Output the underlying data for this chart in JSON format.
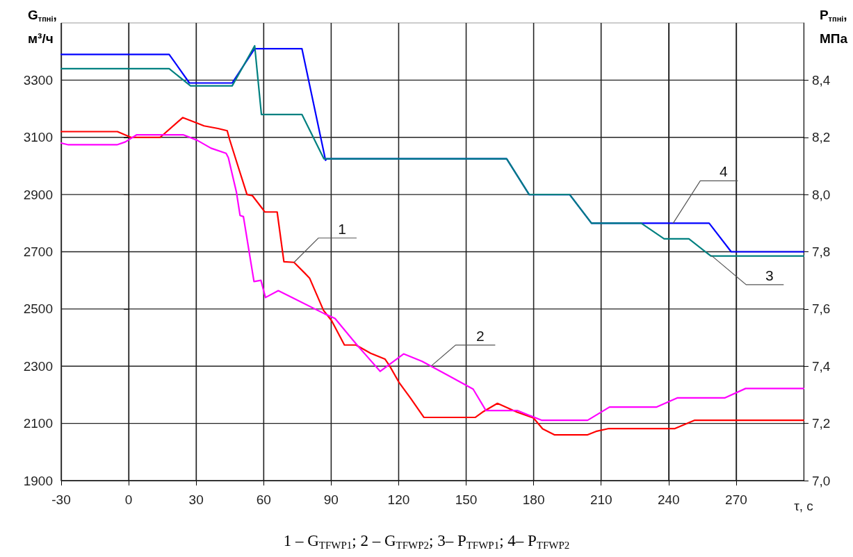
{
  "chart_data": {
    "type": "line",
    "ylabel": "G$_{тпні}$,\nм³/ч",
    "y2label": "P$_{тпні}$,\nМПа",
    "xlabel": "τ, с",
    "xlim": [
      -30,
      300
    ],
    "xticks": [
      -30,
      0,
      30,
      60,
      90,
      120,
      150,
      180,
      210,
      240,
      270
    ],
    "ylim": [
      1900,
      3500
    ],
    "yticks": [
      1900,
      2100,
      2300,
      2500,
      2700,
      2900,
      3100,
      3300
    ],
    "y2lim": [
      7.0,
      8.6
    ],
    "y2ticks": [
      {
        "value": 7.0,
        "label": "7,0"
      },
      {
        "value": 7.2,
        "label": "7,2"
      },
      {
        "value": 7.4,
        "label": "7,4"
      },
      {
        "value": 7.6,
        "label": "7,6"
      },
      {
        "value": 7.8,
        "label": "7,8"
      },
      {
        "value": 8.0,
        "label": "8,0"
      },
      {
        "value": 8.2,
        "label": "8,2"
      },
      {
        "value": 8.4,
        "label": "8,4"
      }
    ],
    "grid": true,
    "marker": "none",
    "line_style": "solid",
    "series": [
      {
        "color": "#ff0000",
        "x": [
          -30,
          -5,
          1,
          14,
          24,
          30,
          33.5,
          39.7,
          43.8,
          44.8,
          49,
          52.6,
          55,
          59.8,
          60.5,
          66,
          69,
          73.5,
          78.3,
          80.4,
          86.6,
          90.2,
          95.9,
          101,
          107.6,
          113.9,
          116,
          120.1,
          125.3,
          131.2,
          154.1,
          157.2,
          163.9,
          172.7,
          179.9,
          184,
          189.2,
          204,
          207.7,
          213.4,
          242.8,
          251.6,
          300
        ],
        "values": [
          3120,
          3120,
          3100,
          3100,
          3169,
          3151,
          3140,
          3131,
          3123,
          3094,
          2989,
          2900,
          2896,
          2847,
          2839,
          2839,
          2665,
          2663,
          2625,
          2608,
          2495,
          2459,
          2374,
          2374,
          2345,
          2325,
          2301,
          2244,
          2188,
          2121,
          2121,
          2139,
          2170,
          2139,
          2119,
          2081,
          2060,
          2060,
          2072,
          2082,
          2082,
          2111,
          2111
        ]
      },
      {
        "color": "#ff00ff",
        "x": [
          -30,
          -26.8,
          -5.2,
          -1.5,
          3.6,
          24.2,
          30.4,
          36.6,
          43.3,
          44.3,
          47.9,
          49.5,
          51,
          54.1,
          55.7,
          58.8,
          60.8,
          66.5,
          72.7,
          87.1,
          91.7,
          101.5,
          105.2,
          111.8,
          122.2,
          130.4,
          142.8,
          153.1,
          158.8,
          172.7,
          183.5,
          204,
          213.7,
          234.5,
          243.8,
          264.9,
          274.2,
          300
        ],
        "values": [
          3080,
          3074,
          3074,
          3084,
          3109,
          3109,
          3090,
          3062,
          3044,
          3029,
          2908,
          2827,
          2823,
          2673,
          2596,
          2600,
          2540,
          2564,
          2540,
          2483,
          2467,
          2374,
          2341,
          2282,
          2343,
          2317,
          2264,
          2220,
          2145,
          2145,
          2111,
          2111,
          2157,
          2157,
          2189,
          2189,
          2222,
          2222
        ]
      },
      {
        "color": "#0000ff",
        "axis": "y2",
        "x": [
          -30,
          18,
          27,
          46,
          56,
          77,
          87.5,
          88,
          168,
          178,
          196,
          205.7,
          258,
          267.8,
          300
        ],
        "values": [
          8.49,
          8.49,
          8.39,
          8.39,
          8.51,
          8.51,
          8.12,
          8.125,
          8.125,
          8.0,
          8.0,
          7.9,
          7.9,
          7.8,
          7.8
        ]
      },
      {
        "color": "#008080",
        "axis": "y2",
        "x": [
          -30,
          18,
          27.5,
          46,
          56,
          59,
          77,
          86.8,
          168,
          178,
          196,
          205.7,
          227.8,
          238,
          249,
          258.8,
          300
        ],
        "values": [
          8.44,
          8.44,
          8.38,
          8.38,
          8.52,
          8.28,
          8.28,
          8.125,
          8.125,
          8.0,
          8.0,
          7.9,
          7.9,
          7.845,
          7.845,
          7.785,
          7.785
        ]
      }
    ],
    "annotations": [
      {
        "text": "1",
        "x": 73.5,
        "y": 2663
      },
      {
        "text": "2",
        "x": 134.5,
        "y": 2301
      },
      {
        "text": "3",
        "x": 259,
        "y": 2687
      },
      {
        "text": "4",
        "x": 242,
        "y": 2800
      },
      "1 – G$_{TFWP1}$; 2 – G$_{TFWP2}$; 3– P$_{TFWP1}$; 4– P$_{TFWP2}$"
    ]
  }
}
